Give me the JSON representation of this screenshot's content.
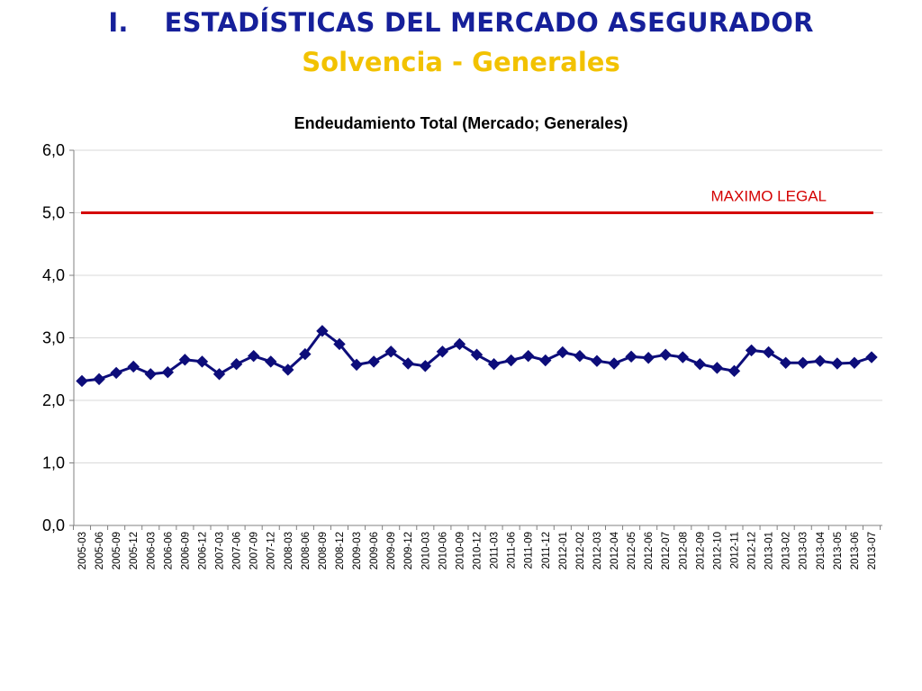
{
  "slide": {
    "title_number": "I.",
    "title": "ESTADÍSTICAS DEL MERCADO ASEGURADOR",
    "subtitle": "Solvencia - Generales"
  },
  "colors": {
    "title": "#16209a",
    "subtitle": "#f2c200",
    "series": "#0d0d7a",
    "limit": "#d40000"
  },
  "chart_data": {
    "type": "line",
    "title": "Endeudamiento Total (Mercado; Generales)",
    "xlabel": "",
    "ylabel": "",
    "ylim": [
      0,
      6
    ],
    "yticks": [
      "0,0",
      "1,0",
      "2,0",
      "3,0",
      "4,0",
      "5,0",
      "6,0"
    ],
    "grid": true,
    "categories": [
      "2005-03",
      "2005-06",
      "2005-09",
      "2005-12",
      "2006-03",
      "2006-06",
      "2006-09",
      "2006-12",
      "2007-03",
      "2007-06",
      "2007-09",
      "2007-12",
      "2008-03",
      "2008-06",
      "2008-09",
      "2008-12",
      "2009-03",
      "2009-06",
      "2009-09",
      "2009-12",
      "2010-03",
      "2010-06",
      "2010-09",
      "2010-12",
      "2011-03",
      "2011-06",
      "2011-09",
      "2011-12",
      "2012-01",
      "2012-02",
      "2012-03",
      "2012-04",
      "2012-05",
      "2012-06",
      "2012-07",
      "2012-08",
      "2012-09",
      "2012-10",
      "2012-11",
      "2012-12",
      "2013-01",
      "2013-02",
      "2013-03",
      "2013-04",
      "2013-05",
      "2013-06",
      "2013-07"
    ],
    "series": [
      {
        "marker": "diamond",
        "values": [
          2.31,
          2.34,
          2.44,
          2.54,
          2.42,
          2.45,
          2.65,
          2.62,
          2.42,
          2.58,
          2.71,
          2.62,
          2.49,
          2.74,
          3.11,
          2.9,
          2.57,
          2.62,
          2.78,
          2.59,
          2.55,
          2.78,
          2.9,
          2.73,
          2.58,
          2.64,
          2.71,
          2.64,
          2.77,
          2.71,
          2.63,
          2.59,
          2.7,
          2.68,
          2.73,
          2.69,
          2.58,
          2.52,
          2.47,
          2.8,
          2.77,
          2.6,
          2.6,
          2.63,
          2.59,
          2.6,
          2.69
        ]
      }
    ],
    "reference_line": {
      "label": "MAXIMO LEGAL",
      "value": 5.0
    }
  }
}
